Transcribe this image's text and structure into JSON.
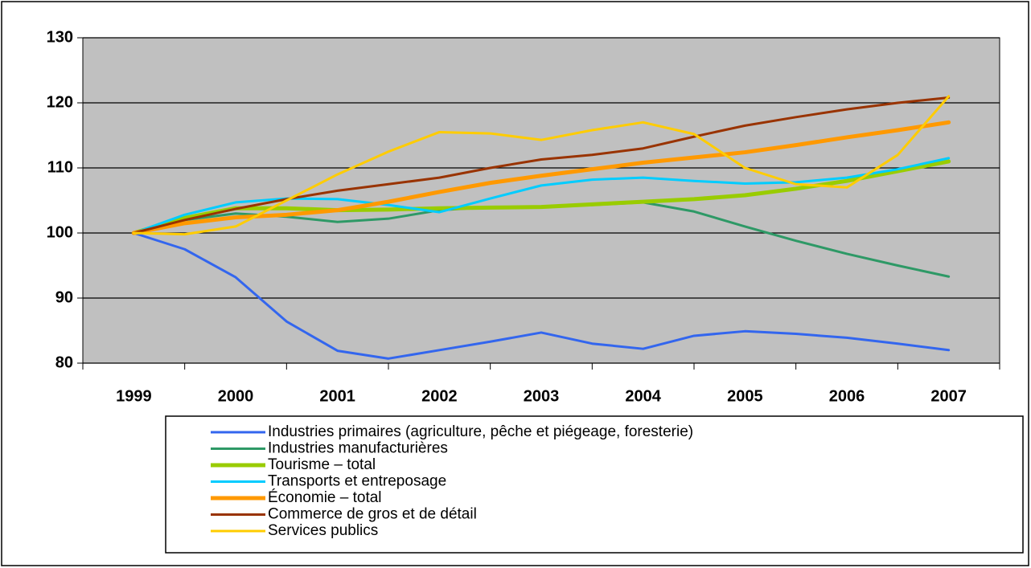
{
  "chart_data": {
    "type": "line",
    "x": [
      1999,
      1999.5,
      2000,
      2000.5,
      2001,
      2001.5,
      2002,
      2002.5,
      2003,
      2003.5,
      2004,
      2004.5,
      2005,
      2005.5,
      2006,
      2006.5,
      2007
    ],
    "xlim": [
      1998.5,
      2007.5
    ],
    "xticks": [
      1999,
      2000,
      2001,
      2002,
      2003,
      2004,
      2005,
      2006,
      2007
    ],
    "ylim": [
      80,
      130
    ],
    "yticks": [
      80,
      90,
      100,
      110,
      120,
      130
    ],
    "grid": true,
    "legend": "bottom",
    "series": [
      {
        "name": "Industries primaires (agriculture, pêche et piégeage, foresterie)",
        "color": "#3366ee",
        "width": 3,
        "values": [
          100,
          97.5,
          93.2,
          86.4,
          81.9,
          80.7,
          82,
          83.3,
          84.7,
          83,
          82.2,
          84.2,
          84.9,
          84.5,
          83.9,
          83,
          82
        ]
      },
      {
        "name": "Industries manufacturières",
        "color": "#2e9966",
        "width": 3,
        "values": [
          100,
          102,
          103,
          102.5,
          101.7,
          102.2,
          103.5,
          104,
          104,
          104.3,
          104.7,
          103.3,
          101,
          98.8,
          96.8,
          95,
          93.3
        ]
      },
      {
        "name": "Tourisme – total",
        "color": "#99cc00",
        "width": 5,
        "values": [
          100,
          102.3,
          103.8,
          103.8,
          103.5,
          103.6,
          103.8,
          103.9,
          104,
          104.4,
          104.8,
          105.2,
          105.8,
          106.8,
          108,
          109.5,
          111
        ]
      },
      {
        "name": "Transports et entreposage",
        "color": "#00ccff",
        "width": 3,
        "values": [
          100,
          102.8,
          104.7,
          105.3,
          105.2,
          104.3,
          103.2,
          105.3,
          107.3,
          108.2,
          108.5,
          108,
          107.6,
          107.8,
          108.5,
          109.8,
          111.5
        ]
      },
      {
        "name": "Économie – total",
        "color": "#ff9900",
        "width": 5,
        "values": [
          100,
          101.5,
          102.4,
          102.8,
          103.5,
          104.8,
          106.3,
          107.7,
          108.8,
          109.8,
          110.8,
          111.6,
          112.4,
          113.5,
          114.7,
          115.8,
          117
        ]
      },
      {
        "name": "Commerce de gros et de détail",
        "color": "#993300",
        "width": 3,
        "values": [
          100,
          102,
          103.7,
          105.2,
          106.5,
          107.5,
          108.5,
          110,
          111.3,
          112,
          113,
          114.8,
          116.5,
          117.8,
          119,
          120,
          120.8
        ]
      },
      {
        "name": "Services publics",
        "color": "#ffcc00",
        "width": 3,
        "values": [
          100,
          99.8,
          101,
          105,
          109,
          112.5,
          115.5,
          115.3,
          114.3,
          115.8,
          117,
          115.2,
          110,
          107.5,
          107,
          112,
          121
        ]
      }
    ]
  }
}
